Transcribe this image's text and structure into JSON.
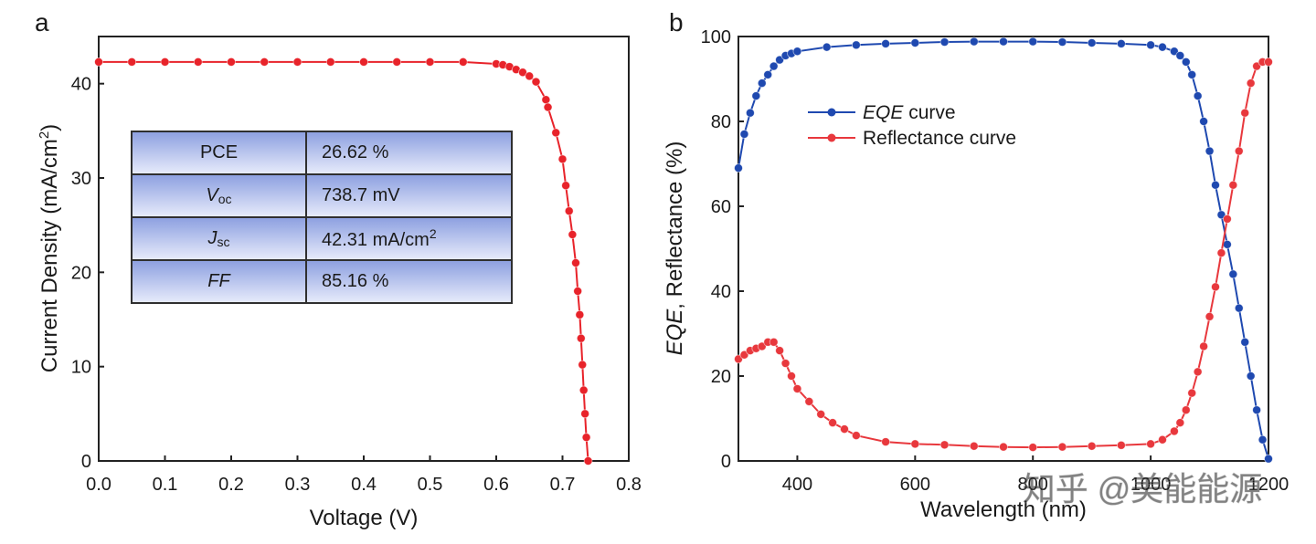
{
  "colors": {
    "jv_curve": "#e8232a",
    "eqe_curve": "#1f49b0",
    "reflectance_curve": "#e8383d",
    "table_gradient_top": "#8c9fe0",
    "table_gradient_bottom": "#e8ecfb"
  },
  "panel_a": {
    "label": "a",
    "table": {
      "rows": [
        {
          "key": "PCE",
          "value": "26.62 %"
        },
        {
          "key_main": "V",
          "key_sub": "oc",
          "value": "738.7 mV"
        },
        {
          "key_main": "J",
          "key_sub": "sc",
          "value_main": "42.31 mA/cm",
          "value_sup": "2"
        },
        {
          "key": "FF",
          "value": "85.16 %"
        }
      ]
    }
  },
  "panel_b": {
    "label": "b",
    "watermark": "知乎 @美能能源"
  },
  "chart_data": [
    {
      "type": "line",
      "panel": "a",
      "title": "",
      "xlabel": "Voltage (V)",
      "ylabel_main": "Current Density  (mA/cm",
      "ylabel_sup": "2",
      "ylabel_end": ")",
      "xlim": [
        0.0,
        0.8
      ],
      "ylim": [
        0,
        45
      ],
      "xticks": [
        "0.0",
        "0.1",
        "0.2",
        "0.3",
        "0.4",
        "0.5",
        "0.6",
        "0.7",
        "0.8"
      ],
      "yticks": [
        "0",
        "10",
        "20",
        "30",
        "40"
      ],
      "grid": false,
      "series": [
        {
          "x": [
            0.0,
            0.05,
            0.1,
            0.15,
            0.2,
            0.25,
            0.3,
            0.35,
            0.4,
            0.45,
            0.5,
            0.55,
            0.6,
            0.61,
            0.62,
            0.63,
            0.64,
            0.65,
            0.66,
            0.675,
            0.678,
            0.69,
            0.7,
            0.705,
            0.71,
            0.715,
            0.72,
            0.723,
            0.726,
            0.728,
            0.73,
            0.732,
            0.734,
            0.736,
            0.7387
          ],
          "y": [
            42.3,
            42.3,
            42.3,
            42.3,
            42.3,
            42.3,
            42.3,
            42.3,
            42.3,
            42.3,
            42.3,
            42.3,
            42.1,
            42.0,
            41.8,
            41.5,
            41.2,
            40.8,
            40.2,
            38.3,
            37.5,
            34.8,
            32.0,
            29.2,
            26.5,
            24.0,
            21.0,
            18.0,
            15.5,
            13.0,
            10.2,
            7.5,
            5.0,
            2.5,
            0.0
          ]
        }
      ]
    },
    {
      "type": "line",
      "panel": "b",
      "title": "",
      "xlabel": "Wavelength (nm)",
      "ylabel_italic": "EQE",
      "ylabel_rest": ", Reflectance (%)",
      "xlim": [
        300,
        1200
      ],
      "ylim": [
        0,
        100
      ],
      "xticks": [
        "400",
        "600",
        "800",
        "1000",
        "1200"
      ],
      "yticks": [
        "0",
        "20",
        "40",
        "60",
        "80",
        "100"
      ],
      "grid": false,
      "legend_position": "top-left",
      "series": [
        {
          "name_italic": "EQE",
          "name_rest": " curve",
          "x": [
            300,
            310,
            320,
            330,
            340,
            350,
            360,
            370,
            380,
            390,
            400,
            450,
            500,
            550,
            600,
            650,
            700,
            750,
            800,
            850,
            900,
            950,
            1000,
            1020,
            1040,
            1050,
            1060,
            1070,
            1080,
            1090,
            1100,
            1110,
            1120,
            1130,
            1140,
            1150,
            1160,
            1170,
            1180,
            1190,
            1200
          ],
          "y": [
            69,
            77,
            82,
            86,
            89,
            91,
            93,
            94.5,
            95.5,
            96,
            96.5,
            97.5,
            98,
            98.3,
            98.5,
            98.7,
            98.8,
            98.8,
            98.8,
            98.7,
            98.5,
            98.3,
            98,
            97.5,
            96.5,
            95.5,
            94,
            91,
            86,
            80,
            73,
            65,
            58,
            51,
            44,
            36,
            28,
            20,
            12,
            5,
            0.5
          ]
        },
        {
          "name": "Reflectance curve",
          "x": [
            300,
            310,
            320,
            330,
            340,
            350,
            360,
            370,
            380,
            390,
            400,
            420,
            440,
            460,
            480,
            500,
            550,
            600,
            650,
            700,
            750,
            800,
            850,
            900,
            950,
            1000,
            1020,
            1040,
            1050,
            1060,
            1070,
            1080,
            1090,
            1100,
            1110,
            1120,
            1130,
            1140,
            1150,
            1160,
            1170,
            1180,
            1190,
            1200
          ],
          "y": [
            24,
            25,
            26,
            26.5,
            27,
            28,
            28,
            26,
            23,
            20,
            17,
            14,
            11,
            9,
            7.5,
            6,
            4.5,
            4,
            3.8,
            3.5,
            3.3,
            3.2,
            3.3,
            3.5,
            3.7,
            4,
            5,
            7,
            9,
            12,
            16,
            21,
            27,
            34,
            41,
            49,
            57,
            65,
            73,
            82,
            89,
            93,
            94,
            94
          ]
        }
      ]
    }
  ]
}
